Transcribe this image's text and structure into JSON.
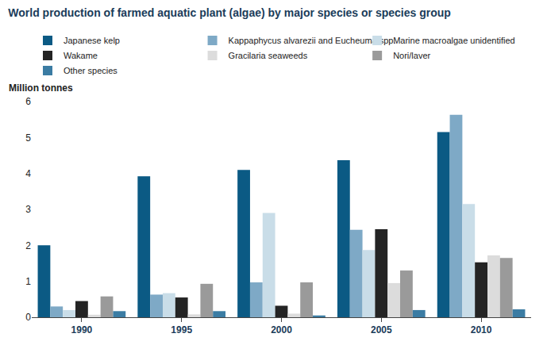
{
  "chart_data": {
    "type": "bar",
    "title": "World production of farmed aquatic plant (algae) by major species or species group",
    "ylabel": "Million tonnes",
    "categories": [
      "1990",
      "1995",
      "2000",
      "2005",
      "2010"
    ],
    "series": [
      {
        "name": "Japanese kelp",
        "color": "#0b5a84",
        "values": [
          2.0,
          3.92,
          4.1,
          4.37,
          5.15
        ]
      },
      {
        "name": "Kappaphycus alvarezii and Eucheuma spp.",
        "color": "#7ea9c6",
        "values": [
          0.3,
          0.63,
          0.97,
          2.43,
          5.63
        ]
      },
      {
        "name": "Marine macroalgae unidentified",
        "color": "#c9dde8",
        "values": [
          0.2,
          0.67,
          2.9,
          1.87,
          3.15
        ]
      },
      {
        "name": "Wakame",
        "color": "#242424",
        "values": [
          0.45,
          0.55,
          0.32,
          2.45,
          1.53
        ]
      },
      {
        "name": "Gracilaria seaweeds",
        "color": "#dcdcdc",
        "values": [
          0.07,
          0.08,
          0.1,
          0.95,
          1.72
        ]
      },
      {
        "name": "Nori/laver",
        "color": "#9a9a9a",
        "values": [
          0.58,
          0.93,
          0.97,
          1.3,
          1.65
        ]
      },
      {
        "name": "Other species",
        "color": "#3b7ca3",
        "values": [
          0.17,
          0.17,
          0.05,
          0.2,
          0.22
        ]
      }
    ],
    "ylim": [
      0,
      6
    ],
    "yticks": [
      0,
      1,
      2,
      3,
      4,
      5,
      6
    ],
    "grid": false,
    "legend": "top"
  }
}
